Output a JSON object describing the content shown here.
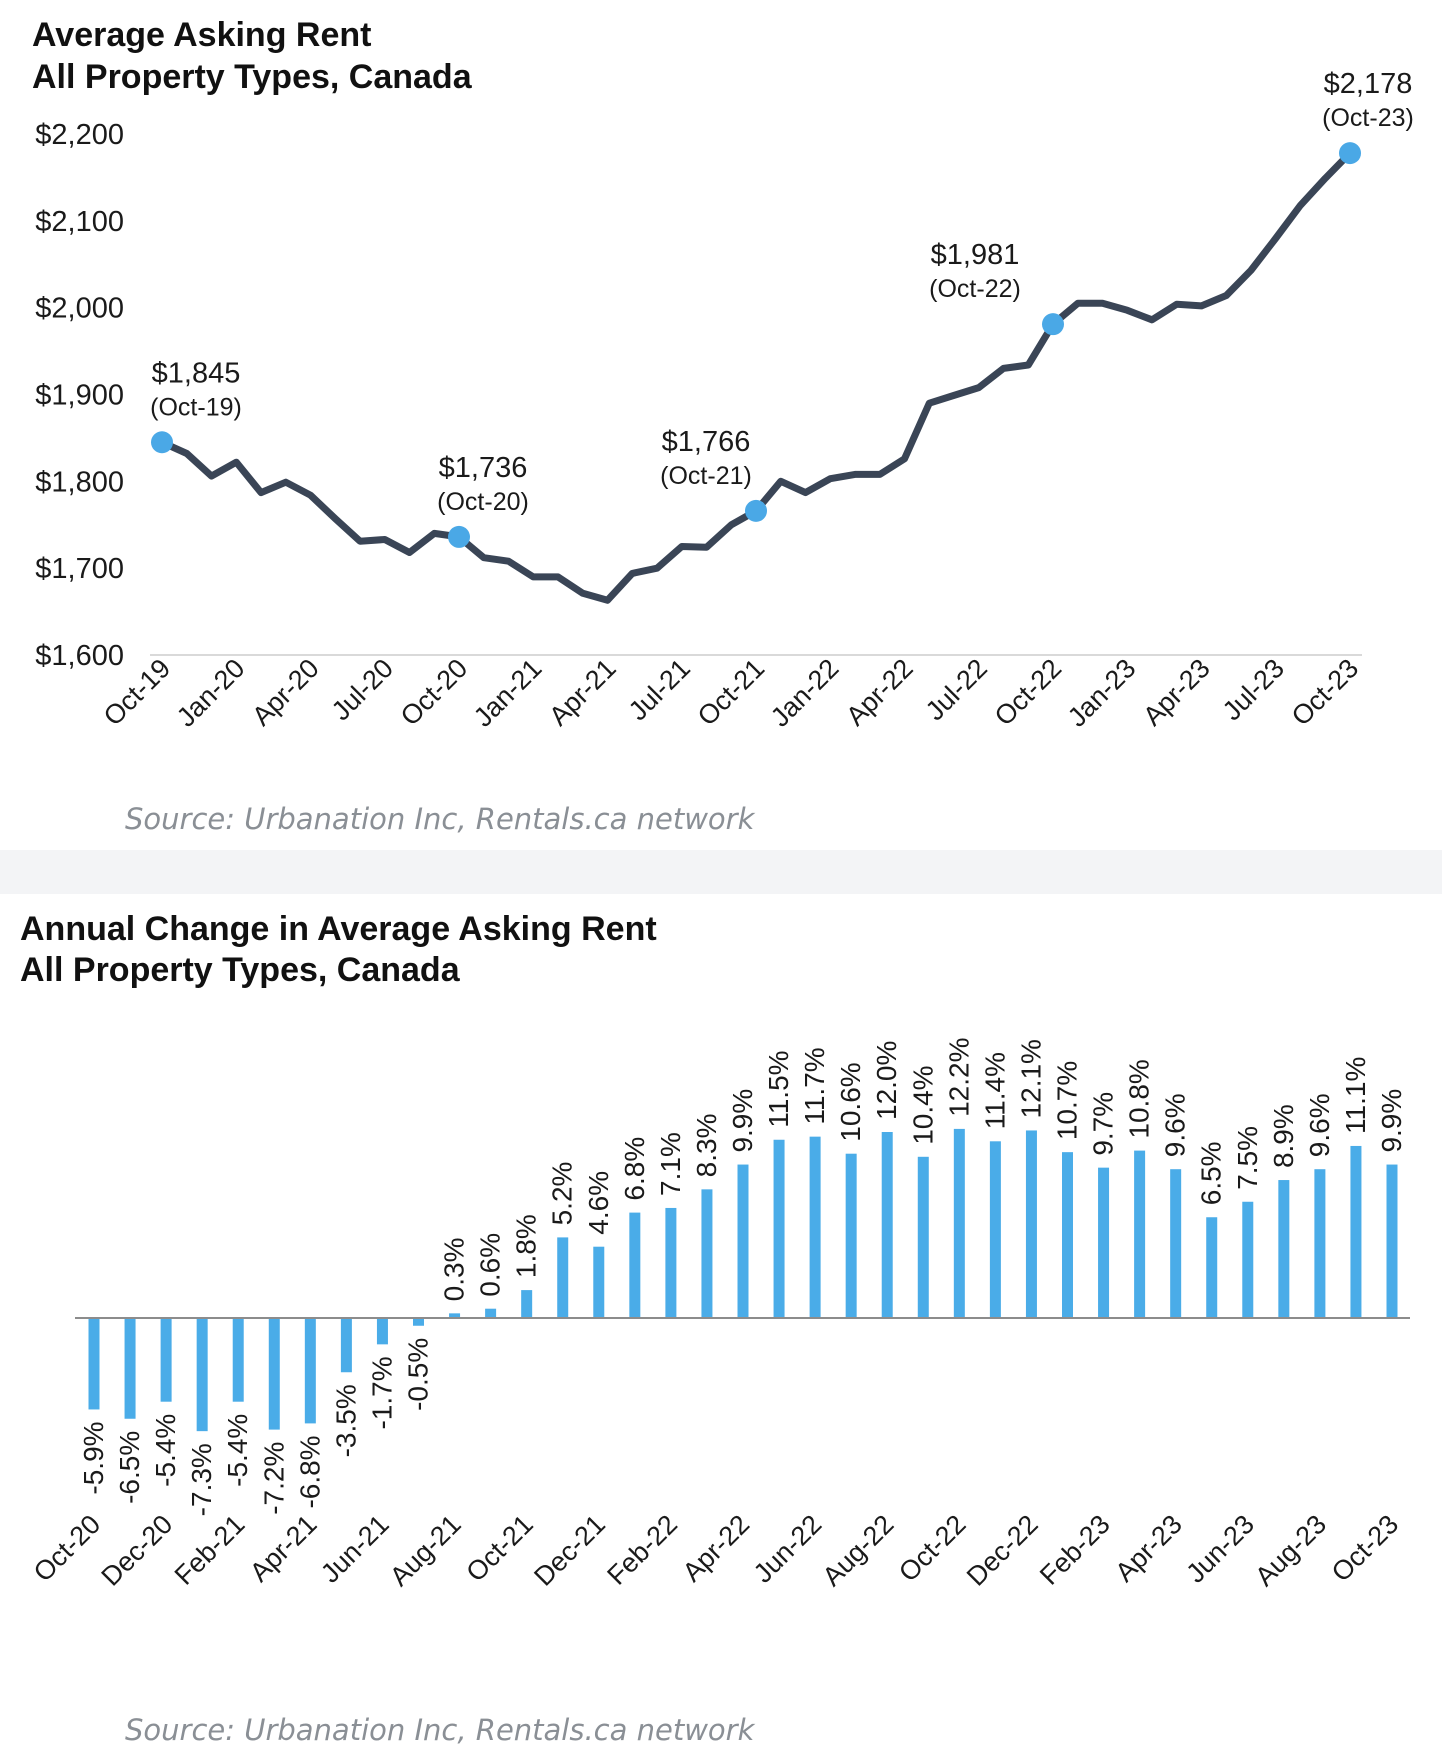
{
  "chart_data": [
    {
      "type": "line",
      "title": "Average Asking Rent",
      "subtitle": "All Property Types, Canada",
      "source": "Source: Urbanation Inc, Rentals.ca network",
      "ylim": [
        1600,
        2200
      ],
      "yticks": [
        "$1,600",
        "$1,700",
        "$1,800",
        "$1,900",
        "$2,000",
        "$2,100",
        "$2,200"
      ],
      "ytick_values": [
        1600,
        1700,
        1800,
        1900,
        2000,
        2100,
        2200
      ],
      "x_tick_labels": [
        "Oct-19",
        "Jan-20",
        "Apr-20",
        "Jul-20",
        "Oct-20",
        "Jan-21",
        "Apr-21",
        "Jul-21",
        "Oct-21",
        "Jan-22",
        "Apr-22",
        "Jul-22",
        "Oct-22",
        "Jan-23",
        "Apr-23",
        "Jul-23",
        "Oct-23"
      ],
      "color": "#3a4556",
      "marker_color": "#4aa8e6",
      "series": [
        {
          "x": [
            "Oct-19",
            "Nov-19",
            "Dec-19",
            "Jan-20",
            "Feb-20",
            "Mar-20",
            "Apr-20",
            "May-20",
            "Jun-20",
            "Jul-20",
            "Aug-20",
            "Sep-20",
            "Oct-20",
            "Nov-20",
            "Dec-20",
            "Jan-21",
            "Feb-21",
            "Mar-21",
            "Apr-21",
            "May-21",
            "Jun-21",
            "Jul-21",
            "Aug-21",
            "Sep-21",
            "Oct-21",
            "Nov-21",
            "Dec-21",
            "Jan-22",
            "Feb-22",
            "Mar-22",
            "Apr-22",
            "May-22",
            "Jun-22",
            "Jul-22",
            "Aug-22",
            "Sep-22",
            "Oct-22",
            "Nov-22",
            "Dec-22",
            "Jan-23",
            "Feb-23",
            "Mar-23",
            "Apr-23",
            "May-23",
            "Jun-23",
            "Jul-23",
            "Aug-23",
            "Sep-23",
            "Oct-23"
          ],
          "values": [
            1845,
            1832,
            1806,
            1822,
            1787,
            1799,
            1784,
            1757,
            1731,
            1733,
            1718,
            1740,
            1736,
            1712,
            1708,
            1690,
            1690,
            1671,
            1663,
            1694,
            1700,
            1725,
            1724,
            1750,
            1766,
            1800,
            1787,
            1803,
            1808,
            1808,
            1826,
            1890,
            1899,
            1908,
            1930,
            1934,
            1981,
            2005,
            2005,
            1997,
            1986,
            2004,
            2002,
            2014,
            2043,
            2080,
            2118,
            2149,
            2178
          ]
        }
      ],
      "annotations": [
        {
          "x": "Oct-19",
          "value": "$1,845",
          "label": "(Oct-19)"
        },
        {
          "x": "Oct-20",
          "value": "$1,736",
          "label": "(Oct-20)"
        },
        {
          "x": "Oct-21",
          "value": "$1,766",
          "label": "(Oct-21)"
        },
        {
          "x": "Oct-22",
          "value": "$1,981",
          "label": "(Oct-22)"
        },
        {
          "x": "Oct-23",
          "value": "$2,178",
          "label": "(Oct-23)"
        }
      ],
      "grid": false
    },
    {
      "type": "bar",
      "title": "Annual Change in Average Asking Rent",
      "subtitle": "All Property Types, Canada",
      "source": "Source: Urbanation Inc, Rentals.ca network",
      "ylim": [
        -8,
        13
      ],
      "color": "#4aace8",
      "categories": [
        "Oct-20",
        "Nov-20",
        "Dec-20",
        "Jan-21",
        "Feb-21",
        "Mar-21",
        "Apr-21",
        "May-21",
        "Jun-21",
        "Jul-21",
        "Aug-21",
        "Sep-21",
        "Oct-21",
        "Nov-21",
        "Dec-21",
        "Jan-22",
        "Feb-22",
        "Mar-22",
        "Apr-22",
        "May-22",
        "Jun-22",
        "Jul-22",
        "Aug-22",
        "Sep-22",
        "Oct-22",
        "Nov-22",
        "Dec-22",
        "Jan-23",
        "Feb-23",
        "Mar-23",
        "Apr-23",
        "May-23",
        "Jun-23",
        "Jul-23",
        "Aug-23",
        "Sep-23",
        "Oct-23"
      ],
      "x_tick_labels": [
        "Oct-20",
        "Dec-20",
        "Feb-21",
        "Apr-21",
        "Jun-21",
        "Aug-21",
        "Oct-21",
        "Dec-21",
        "Feb-22",
        "Apr-22",
        "Jun-22",
        "Aug-22",
        "Oct-22",
        "Dec-22",
        "Feb-23",
        "Apr-23",
        "Jun-23",
        "Aug-23",
        "Oct-23"
      ],
      "values": [
        -5.9,
        -6.5,
        -5.4,
        -7.3,
        -5.4,
        -7.2,
        -6.8,
        -3.5,
        -1.7,
        -0.5,
        0.3,
        0.6,
        1.8,
        5.2,
        4.6,
        6.8,
        7.1,
        8.3,
        9.9,
        11.5,
        11.7,
        10.6,
        12.0,
        10.4,
        12.2,
        11.4,
        12.1,
        10.7,
        9.7,
        10.8,
        9.6,
        6.5,
        7.5,
        8.9,
        9.6,
        11.1,
        9.9
      ],
      "data_labels": [
        "-5.9%",
        "-6.5%",
        "-5.4%",
        "-7.3%",
        "-5.4%",
        "-7.2%",
        "-6.8%",
        "-3.5%",
        "-1.7%",
        "-0.5%",
        "0.3%",
        "0.6%",
        "1.8%",
        "5.2%",
        "4.6%",
        "6.8%",
        "7.1%",
        "8.3%",
        "9.9%",
        "11.5%",
        "11.7%",
        "10.6%",
        "12.0%",
        "10.4%",
        "12.2%",
        "11.4%",
        "12.1%",
        "10.7%",
        "9.7%",
        "10.8%",
        "9.6%",
        "6.5%",
        "7.5%",
        "8.9%",
        "9.6%",
        "11.1%",
        "9.9%"
      ],
      "grid": false
    }
  ]
}
